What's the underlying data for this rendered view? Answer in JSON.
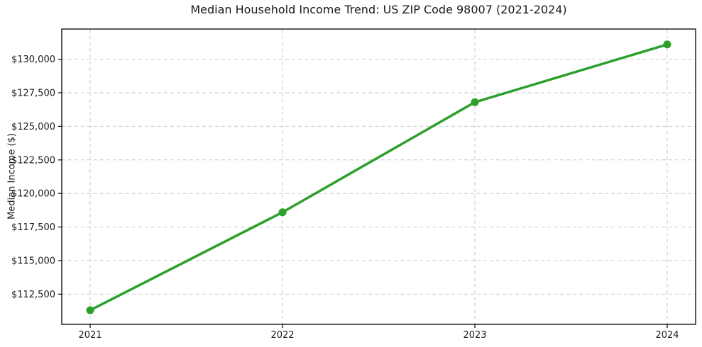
{
  "chart_data": {
    "type": "line",
    "title": "Median Household Income Trend: US ZIP Code 98007 (2021-2024)",
    "xlabel": "",
    "ylabel": "Median Income ($)",
    "categories": [
      "2021",
      "2022",
      "2023",
      "2024"
    ],
    "values": [
      111300,
      118600,
      126800,
      131100
    ],
    "ytick_labels": [
      "$112,500",
      "$115,000",
      "$117,500",
      "$120,000",
      "$122,500",
      "$125,000",
      "$127,500",
      "$130,000"
    ],
    "yticks": [
      112500,
      115000,
      117500,
      120000,
      122500,
      125000,
      127500,
      130000
    ],
    "ylim": [
      110250,
      132250
    ],
    "grid": true,
    "grid_style": "dashed",
    "legend": "none",
    "line_color": "#2ca02c",
    "marker": "circle",
    "grid_color": "#c9c9c9",
    "frame_color": "#000000",
    "background": "#ffffff"
  }
}
